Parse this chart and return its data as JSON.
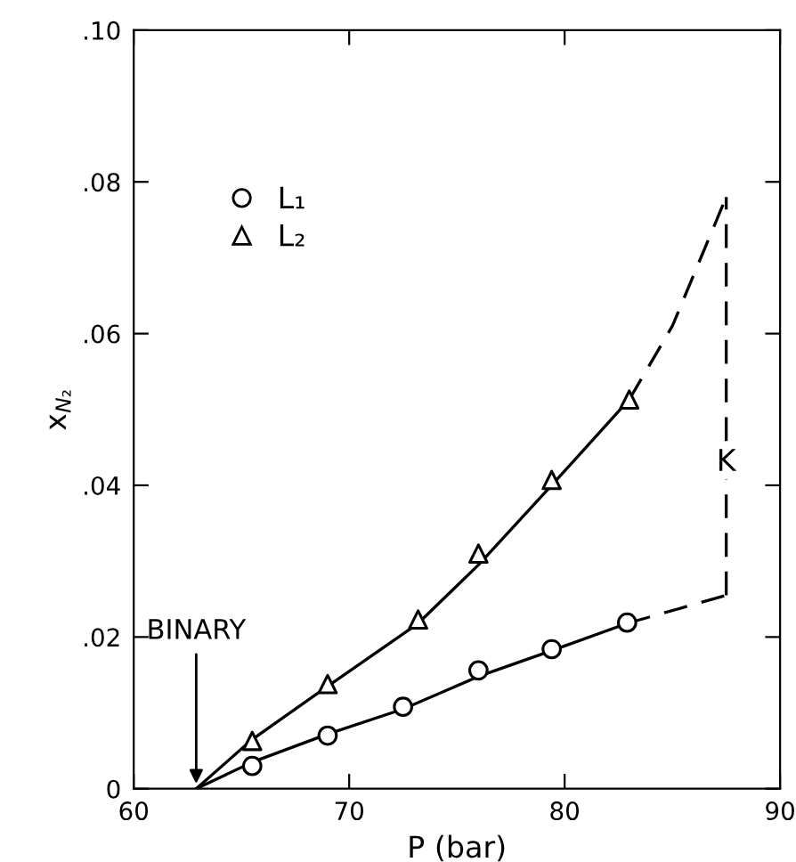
{
  "chart_data": {
    "type": "line",
    "xlabel": "P (bar)",
    "ylabel": "x$_{N₂}$",
    "xlim": [
      60,
      90
    ],
    "xticks": [
      60,
      70,
      80,
      90
    ],
    "ylim": [
      0,
      0.1
    ],
    "yticks": [
      {
        "value": 0,
        "label": "0"
      },
      {
        "value": 0.02,
        "label": ".02"
      },
      {
        "value": 0.04,
        "label": ".04"
      },
      {
        "value": 0.06,
        "label": ".06"
      },
      {
        "value": 0.08,
        "label": ".08"
      },
      {
        "value": 0.1,
        "label": ".10"
      }
    ],
    "grid": false,
    "legend": "top left",
    "series": [
      {
        "type": "scatter",
        "name": "L₁",
        "marker": "circle",
        "color": "#000000",
        "x": [
          65.5,
          69.0,
          72.5,
          76.0,
          79.4,
          82.9
        ],
        "values": [
          0.003,
          0.007,
          0.0108,
          0.0156,
          0.0184,
          0.0219
        ]
      },
      {
        "type": "scatter",
        "name": "L₂",
        "marker": "triangle",
        "color": "#000000",
        "x": [
          65.5,
          69.0,
          73.2,
          76.0,
          79.4,
          83.0
        ],
        "values": [
          0.0063,
          0.0138,
          0.0223,
          0.031,
          0.0407,
          0.0513
        ]
      },
      {
        "line_style": "solid",
        "color": "#000000",
        "x": [
          62.9,
          65.5,
          69.0,
          72.5,
          76.0,
          79.4,
          82.9
        ],
        "values": [
          0,
          0.0035,
          0.0072,
          0.0105,
          0.0148,
          0.0182,
          0.0218
        ]
      },
      {
        "line_style": "dashed",
        "color": "#000000",
        "x": [
          82.9,
          87.5
        ],
        "values": [
          0.0218,
          0.0255
        ]
      },
      {
        "line_style": "solid",
        "color": "#000000",
        "x": [
          62.9,
          65.5,
          69.0,
          73.2,
          76.0,
          79.4,
          83.0
        ],
        "values": [
          0,
          0.0065,
          0.0135,
          0.0218,
          0.0295,
          0.04,
          0.0513
        ]
      },
      {
        "line_style": "dashed",
        "color": "#000000",
        "x": [
          83.0,
          85.0,
          87.5
        ],
        "values": [
          0.0513,
          0.061,
          0.078
        ]
      },
      {
        "line_style": "dashed",
        "color": "#000000",
        "x": [
          87.5,
          87.5
        ],
        "values": [
          0.0255,
          0.078
        ]
      }
    ],
    "annotations": [
      {
        "text": "BINARY",
        "x": 62.9,
        "y": 0
      },
      {
        "text": "K",
        "x": 87.5,
        "y": 0.043
      }
    ]
  }
}
